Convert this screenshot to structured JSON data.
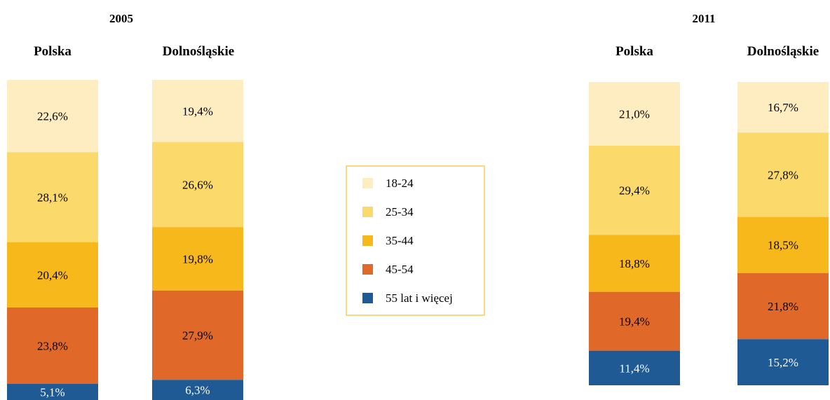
{
  "colors": {
    "18-24": "#FDEDC0",
    "25-34": "#FBD96A",
    "35-44": "#F7B81B",
    "45-54": "#E0692A",
    "55+": "#1F5A94",
    "legend_border": "#F2C12E"
  },
  "legend": [
    {
      "key": "18-24",
      "label": "18-24"
    },
    {
      "key": "25-34",
      "label": "25-34"
    },
    {
      "key": "35-44",
      "label": "35-44"
    },
    {
      "key": "45-54",
      "label": "45-54"
    },
    {
      "key": "55+",
      "label": "55 lat i więcej"
    }
  ],
  "chart_data": [
    {
      "type": "bar",
      "stacked": true,
      "percent": true,
      "title": "2005",
      "categories": [
        "Polska",
        "Dolnośląskie"
      ],
      "series": [
        {
          "name": "18-24",
          "values": [
            22.6,
            19.4
          ],
          "labels": [
            "22,6%",
            "19,4%"
          ]
        },
        {
          "name": "25-34",
          "values": [
            28.1,
            26.6
          ],
          "labels": [
            "28,1%",
            "26,6%"
          ]
        },
        {
          "name": "35-44",
          "values": [
            20.4,
            19.8
          ],
          "labels": [
            "20,4%",
            "19,8%"
          ]
        },
        {
          "name": "45-54",
          "values": [
            23.8,
            27.9
          ],
          "labels": [
            "23,8%",
            "27,9%"
          ]
        },
        {
          "name": "55 lat i więcej",
          "values": [
            5.1,
            6.3
          ],
          "labels": [
            "5,1%",
            "6,3%"
          ]
        }
      ]
    },
    {
      "type": "bar",
      "stacked": true,
      "percent": true,
      "title": "2011",
      "categories": [
        "Polska",
        "Dolnośląskie"
      ],
      "series": [
        {
          "name": "18-24",
          "values": [
            21.0,
            16.7
          ],
          "labels": [
            "21,0%",
            "16,7%"
          ]
        },
        {
          "name": "25-34",
          "values": [
            29.4,
            27.8
          ],
          "labels": [
            "29,4%",
            "27,8%"
          ]
        },
        {
          "name": "35-44",
          "values": [
            18.8,
            18.5
          ],
          "labels": [
            "18,8%",
            "18,5%"
          ]
        },
        {
          "name": "45-54",
          "values": [
            19.4,
            21.8
          ],
          "labels": [
            "19,4%",
            "21,8%"
          ]
        },
        {
          "name": "55 lat i więcej",
          "values": [
            11.4,
            15.2
          ],
          "labels": [
            "11,4%",
            "15,2%"
          ]
        }
      ]
    }
  ]
}
